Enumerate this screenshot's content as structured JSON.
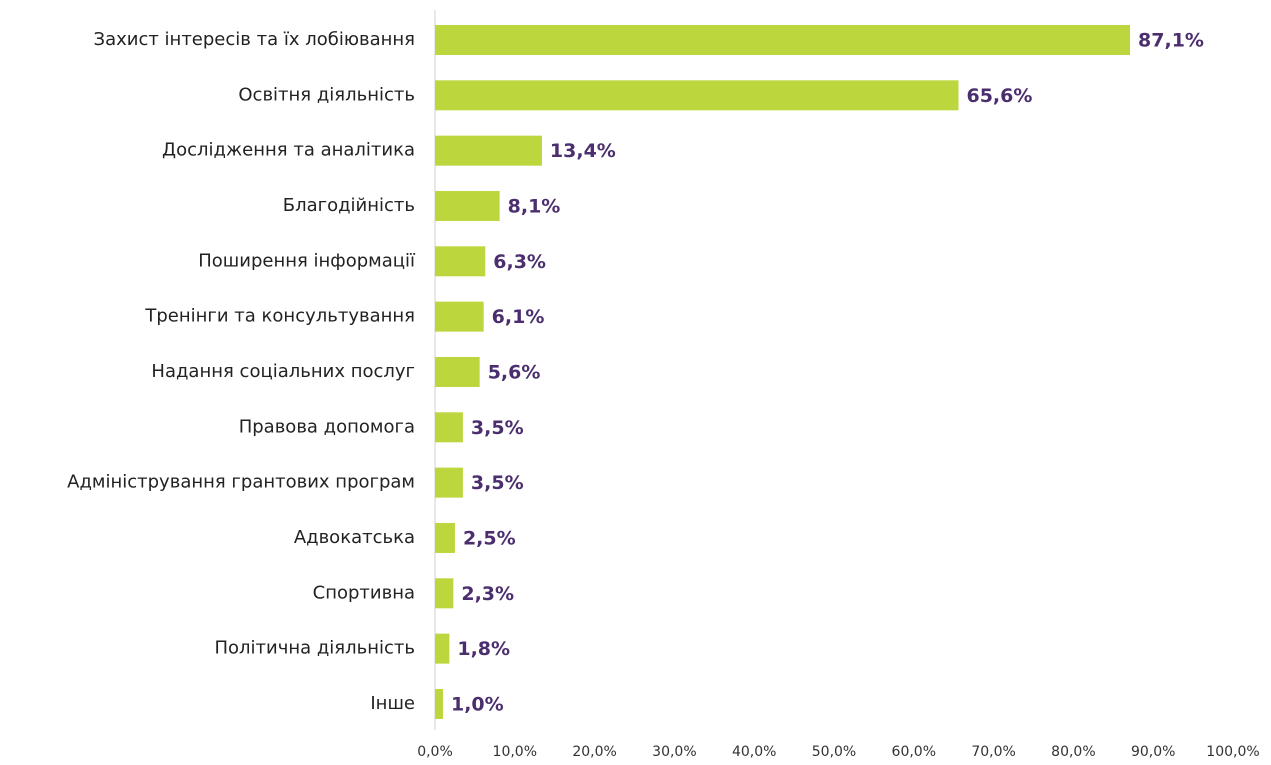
{
  "chart_data": {
    "type": "bar",
    "orientation": "horizontal",
    "categories": [
      "Захист інтересів та їх лобіювання",
      "Освітня діяльність",
      "Дослідження та аналітика",
      "Благодійність",
      "Поширення інформації",
      "Тренінги та консультування",
      "Надання соціальних послуг",
      "Правова допомога",
      "Адміністрування грантових програм",
      "Адвокатська",
      "Спортивна",
      "Політична діяльність",
      "Інше"
    ],
    "values": [
      87.1,
      65.6,
      13.4,
      8.1,
      6.3,
      6.1,
      5.6,
      3.5,
      3.5,
      2.5,
      2.3,
      1.8,
      1.0
    ],
    "value_labels": [
      "87,1%",
      "65,6%",
      "13,4%",
      "8,1%",
      "6,3%",
      "6,1%",
      "5,6%",
      "3,5%",
      "3,5%",
      "2,5%",
      "2,3%",
      "1,8%",
      "1,0%"
    ],
    "color": "#bcd63e",
    "xlim": [
      0,
      100
    ],
    "xticks": [
      {
        "value": 0,
        "label": "0,0%"
      },
      {
        "value": 10,
        "label": "10,0%"
      },
      {
        "value": 20,
        "label": "20,0%"
      },
      {
        "value": 30,
        "label": "30,0%"
      },
      {
        "value": 40,
        "label": "40,0%"
      },
      {
        "value": 50,
        "label": "50,0%"
      },
      {
        "value": 60,
        "label": "60,0%"
      },
      {
        "value": 70,
        "label": "70,0%"
      },
      {
        "value": 80,
        "label": "80,0%"
      },
      {
        "value": 90,
        "label": "90,0%"
      },
      {
        "value": 100,
        "label": "100,0%"
      }
    ]
  }
}
